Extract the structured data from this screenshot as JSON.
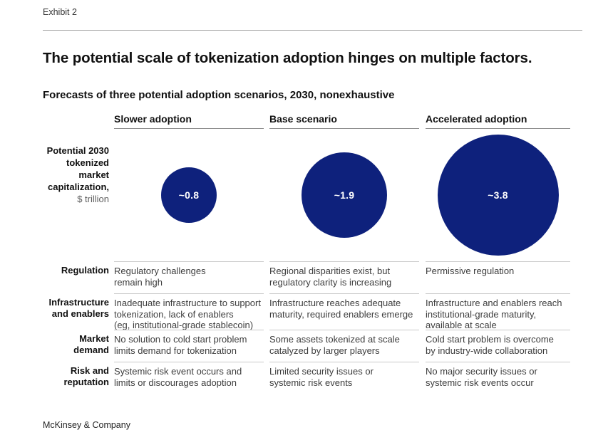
{
  "exhibit_label": "Exhibit 2",
  "title": "The potential scale of tokenization adoption hinges on multiple factors.",
  "subtitle": "Forecasts of three potential adoption scenarios, 2030, nonexhaustive",
  "metric_label": {
    "name": "Potential 2030\ntokenized\nmarket\ncapitalization,",
    "unit": "$ trillion"
  },
  "chart_data": {
    "type": "bubble",
    "title": "Forecasts of three potential adoption scenarios, 2030, nonexhaustive",
    "metric": "Potential 2030 tokenized market capitalization, $ trillion",
    "categories": [
      "Slower adoption",
      "Base scenario",
      "Accelerated adoption"
    ],
    "values": [
      0.8,
      1.9,
      3.8
    ],
    "value_labels": [
      "~0.8",
      "~1.9",
      "~3.8"
    ],
    "unit": "$ trillion",
    "bubble_color": "#0e217c",
    "bubble_text_color": "#ffffff",
    "area_proportional": true,
    "legend_position": "none",
    "grid": false
  },
  "table": {
    "rows": [
      {
        "label": "Regulation",
        "cells": [
          "Regulatory challenges\nremain high",
          "Regional disparities exist, but\nregulatory clarity is increasing",
          "Permissive regulation"
        ]
      },
      {
        "label": "Infrastructure\nand enablers",
        "cells": [
          "Inadequate infrastructure to support\ntokenization, lack of enablers\n(eg, institutional-grade stablecoin)",
          "Infrastructure reaches adequate\nmaturity, required enablers emerge",
          "Infrastructure and enablers reach\ninstitutional-grade maturity,\navailable at scale"
        ]
      },
      {
        "label": "Market\ndemand",
        "cells": [
          "No solution to cold start problem\nlimits demand for tokenization",
          "Some assets tokenized at scale\ncatalyzed by larger players",
          "Cold start problem is overcome\nby industry-wide collaboration"
        ]
      },
      {
        "label": "Risk and\nreputation",
        "cells": [
          "Systemic risk event occurs and\nlimits or discourages adoption",
          "Limited security issues or\nsystemic risk events",
          "No major security issues or\nsystemic risk events occur"
        ]
      }
    ]
  },
  "footer": "McKinsey & Company"
}
